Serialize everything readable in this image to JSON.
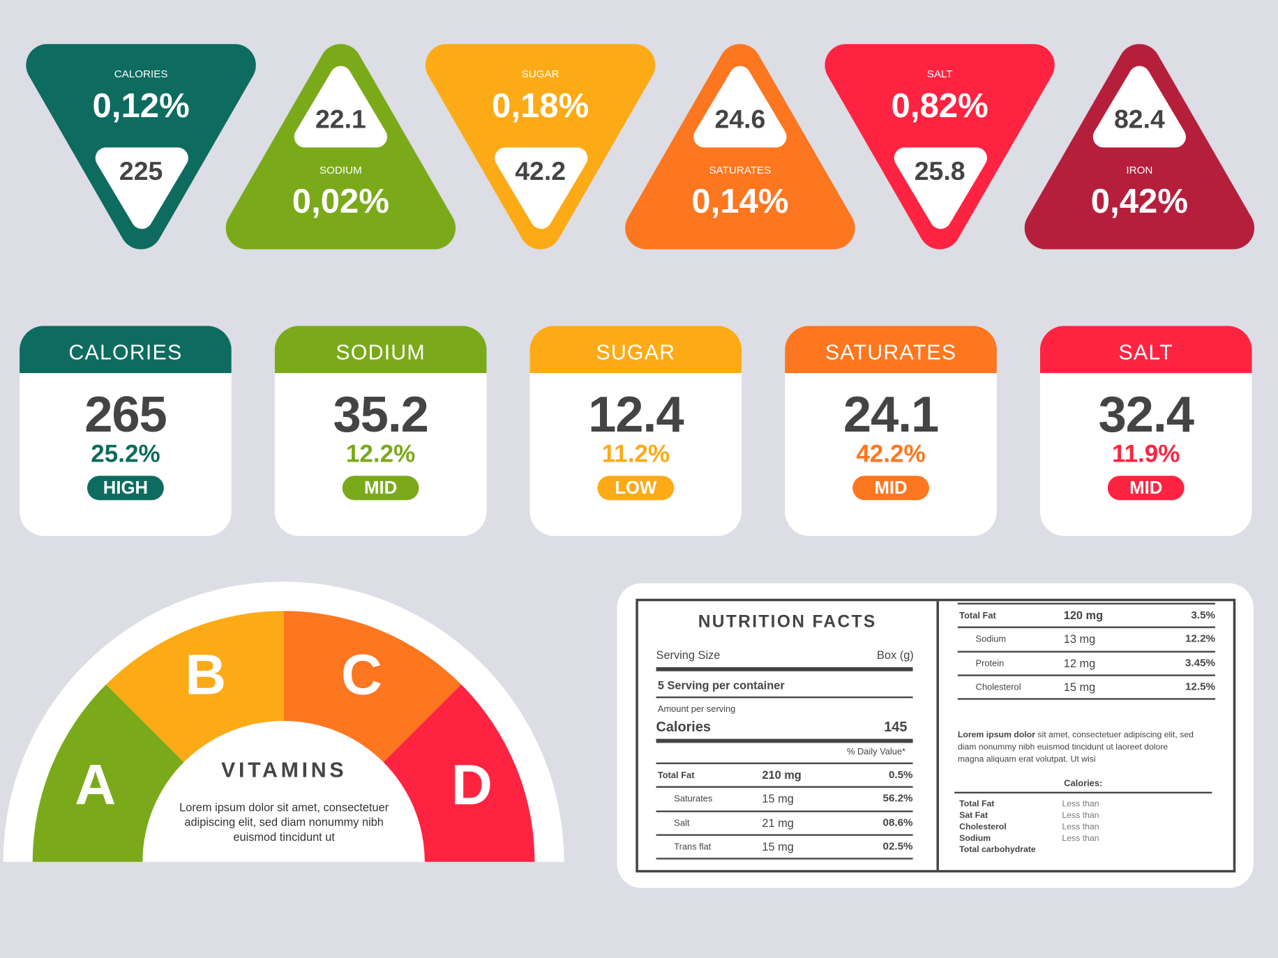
{
  "colors": {
    "teal": "#0d6b5f",
    "green": "#7aaa1a",
    "yellow": "#fcab17",
    "orange": "#fd7620",
    "red": "#fe2441",
    "crimson": "#b51f3c",
    "background": "#dcdde5"
  },
  "triangles": [
    {
      "label": "CALORIES",
      "percent": "0,12%",
      "value": "225",
      "direction": "down",
      "color": "#0d6b5f"
    },
    {
      "label": "SODIUM",
      "percent": "0,02%",
      "value": "22.1",
      "direction": "up",
      "color": "#7aaa1a"
    },
    {
      "label": "SUGAR",
      "percent": "0,18%",
      "value": "42.2",
      "direction": "down",
      "color": "#fcab17"
    },
    {
      "label": "SATURATES",
      "percent": "0,14%",
      "value": "24.6",
      "direction": "up",
      "color": "#fd7620"
    },
    {
      "label": "SALT",
      "percent": "0,82%",
      "value": "25.8",
      "direction": "down",
      "color": "#fe2441"
    },
    {
      "label": "IRON",
      "percent": "0,42%",
      "value": "82.4",
      "direction": "up",
      "color": "#b51f3c"
    }
  ],
  "cards": [
    {
      "title": "CALORIES",
      "value": "265",
      "percent": "25.2%",
      "level": "HIGH",
      "color": "#0d6b5f"
    },
    {
      "title": "SODIUM",
      "value": "35.2",
      "percent": "12.2%",
      "level": "MID",
      "color": "#7aaa1a"
    },
    {
      "title": "SUGAR",
      "value": "12.4",
      "percent": "11.2%",
      "level": "LOW",
      "color": "#fcab17"
    },
    {
      "title": "SATURATES",
      "value": "24.1",
      "percent": "42.2%",
      "level": "MID",
      "color": "#fd7620"
    },
    {
      "title": "SALT",
      "value": "32.4",
      "percent": "11.9%",
      "level": "MID",
      "color": "#fe2441"
    }
  ],
  "gauge": {
    "title": "VITAMINS",
    "text": "Lorem ipsum dolor sit amet, consectetuer adipiscing elit, sed diam nonummy nibh euismod tincidunt ut",
    "segments": [
      {
        "letter": "A",
        "color": "#7aaa1a"
      },
      {
        "letter": "B",
        "color": "#fcab17"
      },
      {
        "letter": "C",
        "color": "#fd7620"
      },
      {
        "letter": "D",
        "color": "#fe2441"
      }
    ]
  },
  "nutrition": {
    "title": "NUTRITION FACTS",
    "serving_size_label": "Serving Size",
    "serving_size_value": "Box (g)",
    "servings": "5 Serving per container",
    "amount_label": "Amount per serving",
    "calories_label": "Calories",
    "calories_value": "145",
    "daily_value_label": "% Daily Value*",
    "left_rows": [
      {
        "name": "Total Fat",
        "amount": "210 mg",
        "pct": "0.5%",
        "main": true
      },
      {
        "name": "Saturates",
        "amount": "15 mg",
        "pct": "56.2%",
        "main": false
      },
      {
        "name": "Salt",
        "amount": "21 mg",
        "pct": "08.6%",
        "main": false
      },
      {
        "name": "Trans flat",
        "amount": "15 mg",
        "pct": "02.5%",
        "main": false
      }
    ],
    "right_rows": [
      {
        "name": "Total Fat",
        "amount": "120 mg",
        "pct": "3.5%",
        "main": true
      },
      {
        "name": "Sodium",
        "amount": "13 mg",
        "pct": "12.2%",
        "main": false
      },
      {
        "name": "Protein",
        "amount": "12 mg",
        "pct": "3.45%",
        "main": false
      },
      {
        "name": "Cholesterol",
        "amount": "15 mg",
        "pct": "12.5%",
        "main": false
      }
    ],
    "lorem_bold": "Lorem ipsum dolor",
    "lorem_rest": " sit amet, consectetuer adipiscing elit, sed diam nonummy nibh euismod tincidunt ut laoreet dolore magna aliquam erat volutpat. Ut wisi",
    "calories_header": "Calories:",
    "footnote": [
      {
        "name": "Total Fat",
        "value": "Less than"
      },
      {
        "name": "Sat Fat",
        "value": "Less than"
      },
      {
        "name": "Cholesterol",
        "value": "Less than"
      },
      {
        "name": "Sodium",
        "value": "Less than"
      },
      {
        "name": "Total carbohydrate",
        "value": ""
      }
    ]
  }
}
